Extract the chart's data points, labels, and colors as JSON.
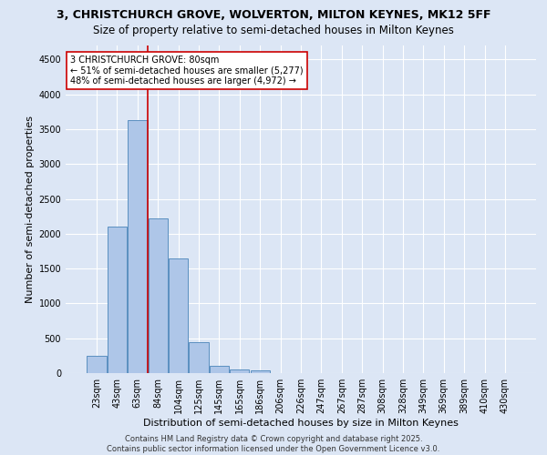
{
  "title_line1": "3, CHRISTCHURCH GROVE, WOLVERTON, MILTON KEYNES, MK12 5FF",
  "title_line2": "Size of property relative to semi-detached houses in Milton Keynes",
  "xlabel": "Distribution of semi-detached houses by size in Milton Keynes",
  "ylabel": "Number of semi-detached properties",
  "categories": [
    "23sqm",
    "43sqm",
    "63sqm",
    "84sqm",
    "104sqm",
    "125sqm",
    "145sqm",
    "165sqm",
    "186sqm",
    "206sqm",
    "226sqm",
    "247sqm",
    "267sqm",
    "287sqm",
    "308sqm",
    "328sqm",
    "349sqm",
    "369sqm",
    "389sqm",
    "410sqm",
    "430sqm"
  ],
  "values": [
    250,
    2100,
    3630,
    2220,
    1640,
    450,
    100,
    55,
    35,
    0,
    0,
    0,
    0,
    0,
    0,
    0,
    0,
    0,
    0,
    0,
    0
  ],
  "bar_color": "#aec6e8",
  "bar_edge_color": "#5a8fc0",
  "vline_color": "#cc0000",
  "vline_x_index": 2.5,
  "annotation_title": "3 CHRISTCHURCH GROVE: 80sqm",
  "annotation_line1": "← 51% of semi-detached houses are smaller (5,277)",
  "annotation_line2": "48% of semi-detached houses are larger (4,972) →",
  "annotation_box_color": "#cc0000",
  "ylim": [
    0,
    4700
  ],
  "yticks": [
    0,
    500,
    1000,
    1500,
    2000,
    2500,
    3000,
    3500,
    4000,
    4500
  ],
  "background_color": "#dce6f5",
  "plot_bg_color": "#dce6f5",
  "footer_line1": "Contains HM Land Registry data © Crown copyright and database right 2025.",
  "footer_line2": "Contains public sector information licensed under the Open Government Licence v3.0.",
  "title_fontsize": 9,
  "subtitle_fontsize": 8.5,
  "tick_fontsize": 7,
  "label_fontsize": 8,
  "annotation_fontsize": 7,
  "footer_fontsize": 6
}
